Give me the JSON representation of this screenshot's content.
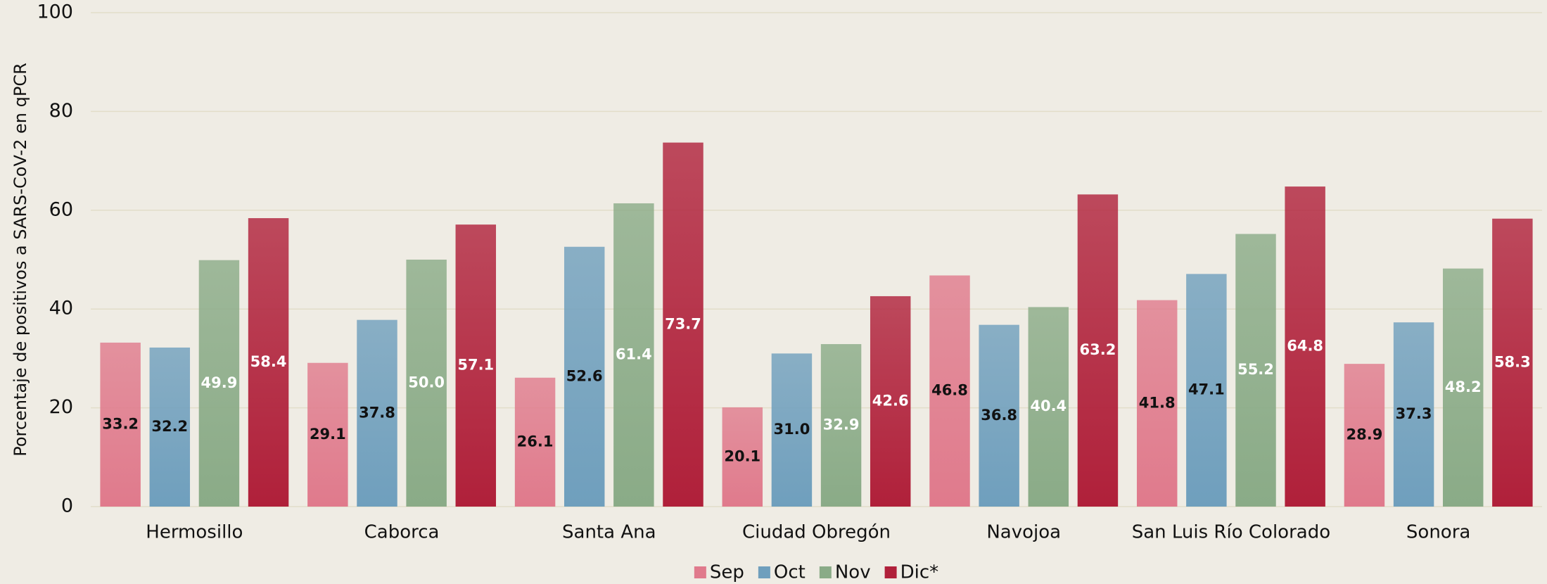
{
  "chart_data": {
    "type": "bar",
    "y_label": "Porcentaje de positivos a SARS-CoV-2 en qPCR",
    "categories": [
      "Hermosillo",
      "Caborca",
      "Santa Ana",
      "Ciudad Obregón",
      "Navojoa",
      "San Luis Río Colorado",
      "Sonora"
    ],
    "series": [
      {
        "name": "Sep",
        "color": "#e07a8c",
        "label_color": "#111111",
        "values": [
          33.2,
          29.1,
          26.1,
          20.1,
          46.8,
          41.8,
          28.9
        ],
        "value_labels": [
          "33.2",
          "29.1",
          "26.1",
          "20.1",
          "46.8",
          "41.8",
          "28.9"
        ]
      },
      {
        "name": "Oct",
        "color": "#6f9fbd",
        "label_color": "#111111",
        "values": [
          32.2,
          37.8,
          52.6,
          31.0,
          36.8,
          47.1,
          37.3
        ],
        "value_labels": [
          "32.2",
          "37.8",
          "52.6",
          "31.0",
          "36.8",
          "47.1",
          "37.3"
        ]
      },
      {
        "name": "Nov",
        "color": "#8aab87",
        "label_color": "#ffffff",
        "values": [
          49.9,
          50.0,
          61.4,
          32.9,
          40.4,
          55.2,
          48.2
        ],
        "value_labels": [
          "49.9",
          "50.0",
          "61.4",
          "32.9",
          "40.4",
          "55.2",
          "48.2"
        ]
      },
      {
        "name": "Dic*",
        "color": "#b0203a",
        "label_color": "#ffffff",
        "values": [
          58.4,
          57.1,
          73.7,
          42.6,
          63.2,
          64.8,
          58.3
        ],
        "value_labels": [
          "58.4",
          "57.1",
          "73.7",
          "42.6",
          "63.2",
          "64.8",
          "58.3"
        ]
      }
    ],
    "ylim": [
      0,
      100
    ],
    "yticks": [
      0,
      20,
      40,
      60,
      80,
      100
    ],
    "grid": true,
    "legend": "bottom"
  }
}
